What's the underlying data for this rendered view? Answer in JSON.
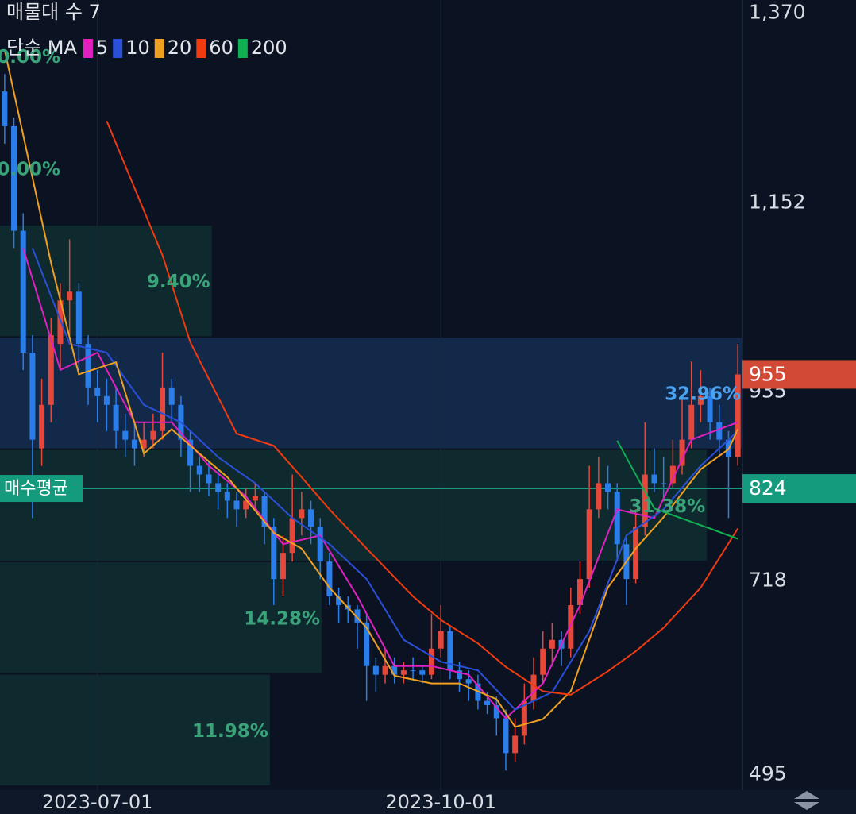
{
  "chart_data": {
    "type": "candlestick",
    "title": "매물대 수 7",
    "legend_title": "단순 MA",
    "up_color": "#e5483a",
    "down_color": "#2b7de9",
    "xlim": [
      -0.5,
      79.5
    ],
    "ylim": [
      482,
      1385
    ],
    "yticks": [
      {
        "value": 1370,
        "label": "1,370"
      },
      {
        "value": 1152,
        "label": "1,152"
      },
      935,
      718,
      495
    ],
    "xticks": [
      {
        "value": 10,
        "label": "2023-07-01"
      },
      {
        "value": 47,
        "label": "2023-10-01"
      }
    ],
    "ohlc": [
      [
        1280,
        1300,
        1220,
        1240
      ],
      [
        1240,
        1250,
        1100,
        1120
      ],
      [
        1120,
        1140,
        960,
        980
      ],
      [
        980,
        1000,
        790,
        880
      ],
      [
        870,
        950,
        850,
        920
      ],
      [
        920,
        1020,
        900,
        1000
      ],
      [
        990,
        1060,
        960,
        1040
      ],
      [
        1040,
        1110,
        1000,
        1050
      ],
      [
        1050,
        1060,
        960,
        990
      ],
      [
        990,
        1000,
        920,
        940
      ],
      [
        940,
        960,
        900,
        930
      ],
      [
        930,
        950,
        890,
        920
      ],
      [
        920,
        940,
        870,
        890
      ],
      [
        890,
        910,
        860,
        880
      ],
      [
        880,
        900,
        850,
        870
      ],
      [
        870,
        900,
        860,
        880
      ],
      [
        880,
        910,
        870,
        890
      ],
      [
        890,
        980,
        880,
        940
      ],
      [
        940,
        950,
        900,
        920
      ],
      [
        920,
        930,
        860,
        880
      ],
      [
        880,
        890,
        820,
        850
      ],
      [
        850,
        860,
        820,
        840
      ],
      [
        840,
        855,
        815,
        830
      ],
      [
        830,
        845,
        800,
        820
      ],
      [
        820,
        830,
        790,
        810
      ],
      [
        810,
        820,
        780,
        800
      ],
      [
        800,
        825,
        790,
        810
      ],
      [
        810,
        830,
        800,
        815
      ],
      [
        815,
        820,
        760,
        780
      ],
      [
        780,
        790,
        690,
        720
      ],
      [
        720,
        770,
        700,
        750
      ],
      [
        750,
        840,
        740,
        790
      ],
      [
        790,
        820,
        770,
        800
      ],
      [
        800,
        810,
        760,
        780
      ],
      [
        780,
        790,
        720,
        740
      ],
      [
        740,
        750,
        690,
        700
      ],
      [
        700,
        710,
        670,
        690
      ],
      [
        690,
        700,
        670,
        685
      ],
      [
        685,
        690,
        640,
        670
      ],
      [
        670,
        680,
        580,
        620
      ],
      [
        620,
        630,
        590,
        610
      ],
      [
        610,
        640,
        600,
        620
      ],
      [
        620,
        630,
        600,
        610
      ],
      [
        610,
        625,
        600,
        615
      ],
      [
        615,
        630,
        605,
        615
      ],
      [
        615,
        620,
        600,
        610
      ],
      [
        610,
        680,
        605,
        640
      ],
      [
        640,
        690,
        630,
        660
      ],
      [
        660,
        665,
        605,
        615
      ],
      [
        615,
        625,
        590,
        605
      ],
      [
        605,
        615,
        580,
        600
      ],
      [
        600,
        610,
        570,
        580
      ],
      [
        580,
        590,
        565,
        575
      ],
      [
        575,
        585,
        540,
        560
      ],
      [
        560,
        570,
        500,
        520
      ],
      [
        520,
        560,
        510,
        540
      ],
      [
        540,
        600,
        530,
        580
      ],
      [
        580,
        630,
        570,
        610
      ],
      [
        610,
        660,
        600,
        640
      ],
      [
        640,
        670,
        620,
        650
      ],
      [
        650,
        660,
        620,
        640
      ],
      [
        640,
        710,
        630,
        690
      ],
      [
        690,
        740,
        680,
        720
      ],
      [
        720,
        850,
        710,
        800
      ],
      [
        800,
        860,
        790,
        830
      ],
      [
        830,
        850,
        800,
        820
      ],
      [
        820,
        830,
        740,
        760
      ],
      [
        760,
        770,
        690,
        720
      ],
      [
        720,
        800,
        715,
        780
      ],
      [
        780,
        900,
        770,
        840
      ],
      [
        840,
        870,
        820,
        830
      ],
      [
        830,
        860,
        810,
        830
      ],
      [
        830,
        880,
        825,
        850
      ],
      [
        850,
        930,
        840,
        880
      ],
      [
        880,
        970,
        870,
        920
      ],
      [
        920,
        960,
        900,
        930
      ],
      [
        930,
        940,
        880,
        900
      ],
      [
        900,
        920,
        860,
        880
      ],
      [
        880,
        890,
        790,
        860
      ],
      [
        860,
        990,
        850,
        955
      ]
    ],
    "series": [
      {
        "name": "5",
        "color": "#e020c0",
        "x": [
          2,
          6,
          10,
          14,
          18,
          22,
          26,
          30,
          34,
          38,
          42,
          46,
          50,
          54,
          58,
          62,
          66,
          70,
          74,
          79
        ],
        "values": [
          1100,
          960,
          980,
          900,
          900,
          850,
          815,
          760,
          770,
          700,
          620,
          620,
          610,
          560,
          600,
          690,
          800,
          790,
          880,
          900
        ]
      },
      {
        "name": "10",
        "color": "#2a4fd8",
        "x": [
          3,
          7,
          11,
          15,
          19,
          23,
          27,
          31,
          35,
          39,
          43,
          47,
          51,
          55,
          59,
          63,
          67,
          71,
          75,
          79
        ],
        "values": [
          1100,
          990,
          980,
          920,
          900,
          860,
          830,
          790,
          760,
          720,
          650,
          625,
          615,
          570,
          590,
          660,
          770,
          800,
          850,
          890
        ]
      },
      {
        "name": "20",
        "color": "#f0a020",
        "x": [
          0,
          5,
          8,
          12,
          15,
          18,
          21,
          24,
          29,
          32,
          35,
          39,
          42,
          46,
          49,
          53,
          55,
          58,
          61,
          65,
          68,
          71,
          75,
          78,
          79
        ],
        "values": [
          1328,
          1083,
          955,
          969,
          864,
          892,
          864,
          837,
          773,
          755,
          710,
          664,
          609,
          600,
          600,
          582,
          550,
          559,
          591,
          710,
          755,
          791,
          846,
          869,
          892
        ]
      },
      {
        "name": "60",
        "color": "#f03a10",
        "x": [
          11,
          17,
          20,
          25,
          29,
          32,
          35,
          39,
          44,
          47,
          51,
          54,
          58,
          61,
          65,
          68,
          71,
          75,
          79
        ],
        "values": [
          1246,
          1092,
          992,
          887,
          873,
          837,
          800,
          755,
          700,
          673,
          646,
          619,
          591,
          587,
          614,
          637,
          664,
          710,
          778
        ]
      },
      {
        "name": "200",
        "color": "#10b050",
        "x": [
          66,
          70,
          76,
          79
        ],
        "values": [
          879,
          801,
          778,
          766
        ]
      }
    ],
    "volume_profile": {
      "bins": [
        482,
        611,
        740,
        869,
        998,
        1127,
        1256,
        1385
      ],
      "values": [
        11.98,
        14.28,
        31.38,
        32.96,
        9.4,
        0.0,
        0.0
      ],
      "value_labels": [
        "11.98%",
        "14.28%",
        "31.38%",
        "32.96%",
        "9.40%",
        "0.00%",
        "0.00%"
      ],
      "color": "#0f2a2e",
      "label_color": "#3aa37a",
      "highlight": 3,
      "highlight_color": "#13294a",
      "highlight_label_color": "#4aa3f0"
    },
    "avg_price": {
      "label": "매수평균",
      "value": 824,
      "color": "#149a7c"
    },
    "last_price": {
      "value": 955,
      "color": "#d24a35"
    }
  }
}
